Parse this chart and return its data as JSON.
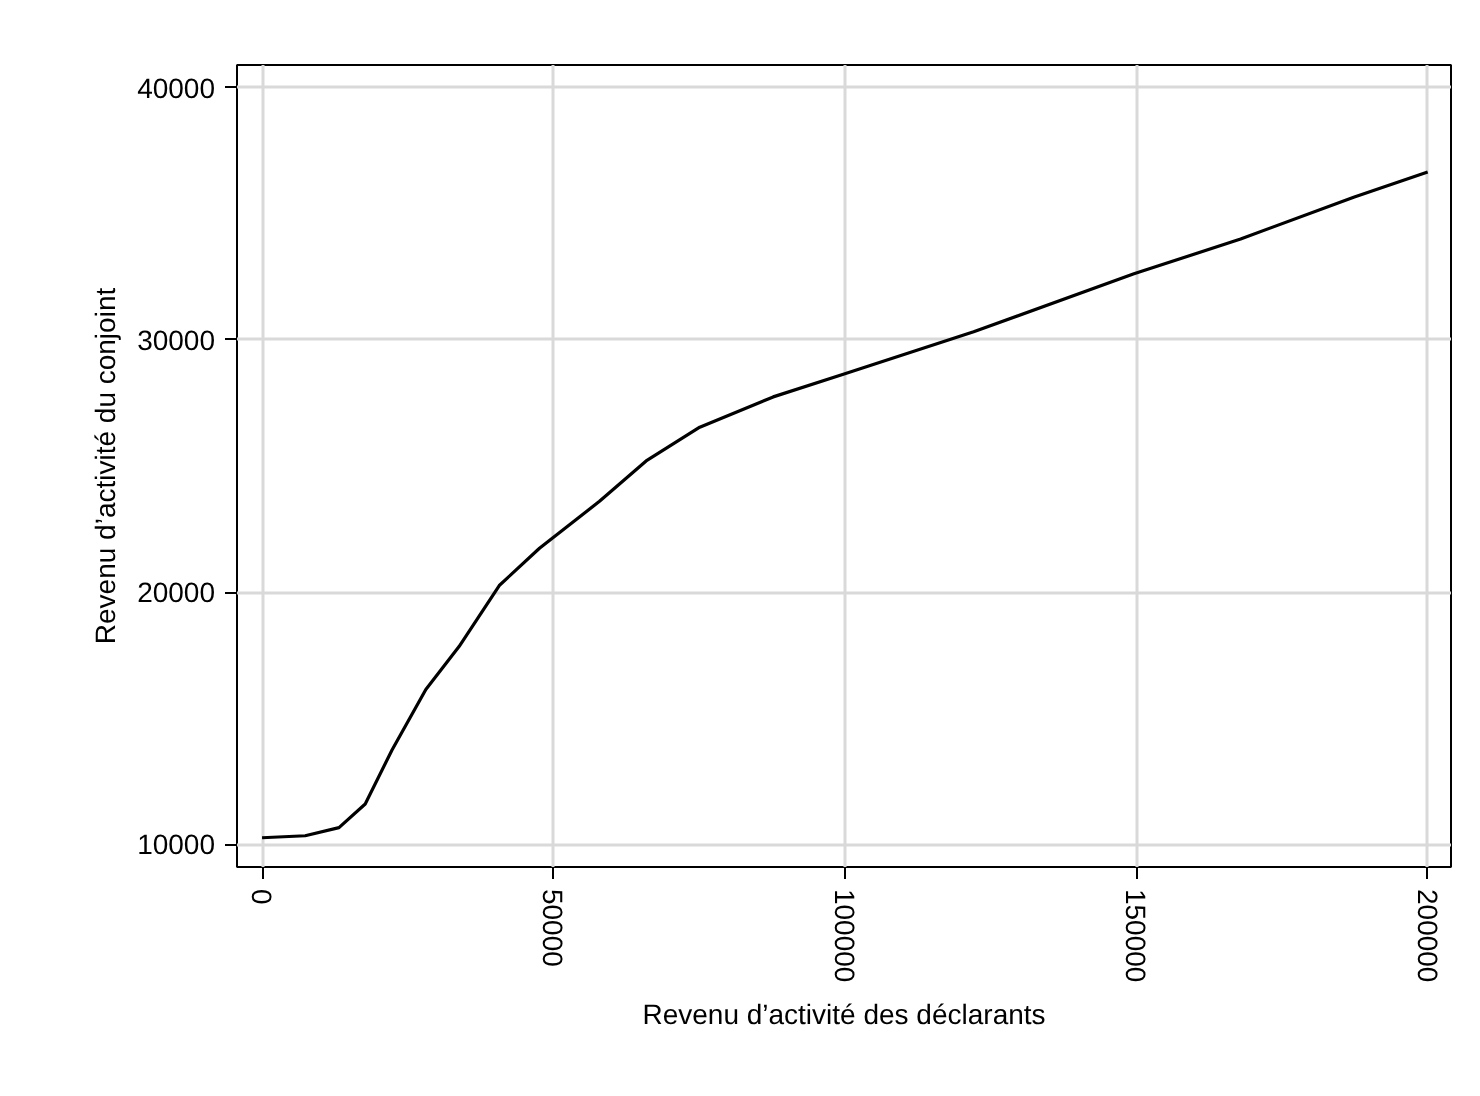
{
  "chart_data": {
    "type": "line",
    "xlabel": "Revenu d’activité des déclarants",
    "ylabel": "Revenu d’activité du conjoint",
    "x": [
      0,
      7400,
      13200,
      17700,
      22300,
      28100,
      33800,
      40700,
      47600,
      57900,
      65900,
      75100,
      87700,
      100000,
      122100,
      149600,
      167900,
      187300,
      200000
    ],
    "series": [
      {
        "color": "#000000",
        "values": [
          10260,
          10340,
          10660,
          11600,
          13740,
          16140,
          17840,
          20260,
          21740,
          23600,
          25200,
          26540,
          27740,
          28660,
          30320,
          32620,
          34000,
          35660,
          36660
        ]
      }
    ],
    "xlim": [
      -4300,
      204000
    ],
    "ylim": [
      9100,
      40900
    ],
    "xticks": [
      0,
      50000,
      100000,
      150000,
      200000
    ],
    "yticks": [
      10000,
      20000,
      30000,
      40000
    ],
    "grid": true,
    "marker": "none",
    "line_style": "solid"
  }
}
